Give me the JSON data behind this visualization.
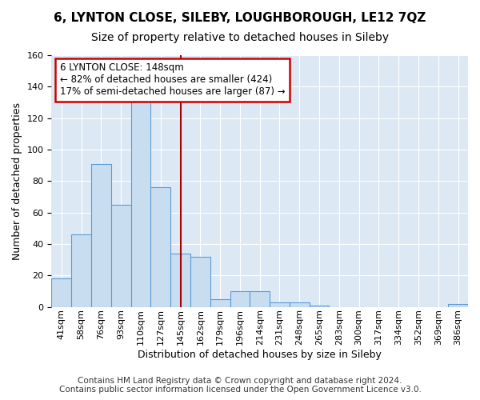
{
  "title": "6, LYNTON CLOSE, SILEBY, LOUGHBOROUGH, LE12 7QZ",
  "subtitle": "Size of property relative to detached houses in Sileby",
  "xlabel": "Distribution of detached houses by size in Sileby",
  "ylabel": "Number of detached properties",
  "bin_labels": [
    "41sqm",
    "58sqm",
    "76sqm",
    "93sqm",
    "110sqm",
    "127sqm",
    "145sqm",
    "162sqm",
    "179sqm",
    "196sqm",
    "214sqm",
    "231sqm",
    "248sqm",
    "265sqm",
    "283sqm",
    "300sqm",
    "317sqm",
    "334sqm",
    "352sqm",
    "369sqm",
    "386sqm"
  ],
  "bar_values": [
    18,
    46,
    91,
    65,
    131,
    76,
    34,
    32,
    5,
    10,
    10,
    3,
    3,
    1,
    0,
    0,
    0,
    0,
    0,
    0,
    2
  ],
  "bar_color": "#c8ddf0",
  "bar_edge_color": "#5b9bd5",
  "vline_x_index": 6.0,
  "vline_color": "#aa0000",
  "annotation_title": "6 LYNTON CLOSE: 148sqm",
  "annotation_line1": "← 82% of detached houses are smaller (424)",
  "annotation_line2": "17% of semi-detached houses are larger (87) →",
  "annotation_box_color": "#ffffff",
  "annotation_box_edge": "#cc0000",
  "ylim": [
    0,
    160
  ],
  "yticks": [
    0,
    20,
    40,
    60,
    80,
    100,
    120,
    140,
    160
  ],
  "footer1": "Contains HM Land Registry data © Crown copyright and database right 2024.",
  "footer2": "Contains public sector information licensed under the Open Government Licence v3.0.",
  "fig_bg_color": "#ffffff",
  "plot_bg_color": "#dce9f5",
  "title_fontsize": 11,
  "subtitle_fontsize": 10,
  "axis_label_fontsize": 9,
  "tick_fontsize": 8,
  "footer_fontsize": 7.5,
  "annotation_fontsize": 8.5
}
